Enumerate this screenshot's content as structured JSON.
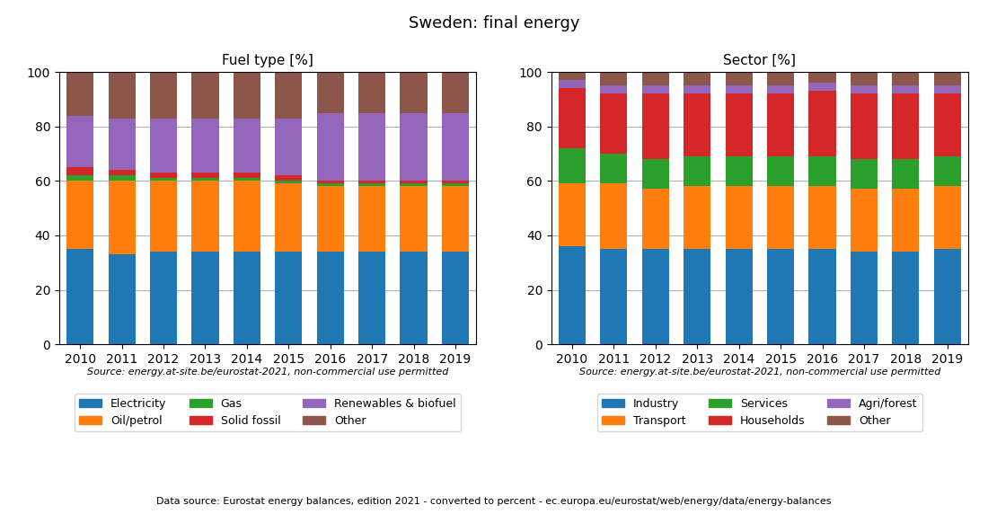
{
  "title": "Sweden: final energy",
  "annotations": [
    "Data source: Eurostat energy balances, edition 2021 - converted to percent - ec.europa.eu/eurostat/web/energy/data/energy-balances"
  ],
  "chart_data": [
    {
      "type": "bar",
      "stacked": true,
      "title": "Fuel type [%]",
      "categories": [
        "2010",
        "2011",
        "2012",
        "2013",
        "2014",
        "2015",
        "2016",
        "2017",
        "2018",
        "2019"
      ],
      "series": [
        {
          "name": "Electricity",
          "values": [
            35,
            33,
            34,
            34,
            34,
            34,
            34,
            34,
            34,
            34
          ]
        },
        {
          "name": "Oil/petrol",
          "values": [
            25,
            27,
            26,
            26,
            26,
            25,
            24,
            24,
            24,
            24
          ]
        },
        {
          "name": "Gas",
          "values": [
            2,
            2,
            1,
            1,
            1,
            1,
            1,
            1,
            1,
            1
          ]
        },
        {
          "name": "Solid fossil",
          "values": [
            3,
            2,
            2,
            2,
            2,
            2,
            1,
            1,
            1,
            1
          ]
        },
        {
          "name": "Renewables & biofuel",
          "values": [
            19,
            19,
            20,
            20,
            20,
            21,
            25,
            25,
            25,
            25
          ]
        },
        {
          "name": "Other",
          "values": [
            16,
            17,
            17,
            17,
            17,
            17,
            15,
            15,
            15,
            15
          ]
        }
      ],
      "ylim": [
        0,
        100
      ],
      "yticks": [
        0,
        20,
        40,
        60,
        80,
        100
      ],
      "grid": true,
      "legend": "upper center",
      "annotations": [
        "Source: energy.at-site.be/eurostat-2021, non-commercial use permitted"
      ]
    },
    {
      "type": "bar",
      "stacked": true,
      "title": "Sector [%]",
      "categories": [
        "2010",
        "2011",
        "2012",
        "2013",
        "2014",
        "2015",
        "2016",
        "2017",
        "2018",
        "2019"
      ],
      "series": [
        {
          "name": "Industry",
          "values": [
            36,
            35,
            35,
            35,
            35,
            35,
            35,
            34,
            34,
            35
          ]
        },
        {
          "name": "Transport",
          "values": [
            23,
            24,
            22,
            23,
            23,
            23,
            23,
            23,
            23,
            23
          ]
        },
        {
          "name": "Services",
          "values": [
            13,
            11,
            11,
            11,
            11,
            11,
            11,
            11,
            11,
            11
          ]
        },
        {
          "name": "Households",
          "values": [
            22,
            22,
            24,
            23,
            23,
            23,
            24,
            24,
            24,
            23
          ]
        },
        {
          "name": "Agri/forest",
          "values": [
            3,
            3,
            3,
            3,
            3,
            3,
            3,
            3,
            3,
            3
          ]
        },
        {
          "name": "Other",
          "values": [
            3,
            5,
            5,
            5,
            5,
            5,
            4,
            5,
            5,
            5
          ]
        }
      ],
      "ylim": [
        0,
        100
      ],
      "yticks": [
        0,
        20,
        40,
        60,
        80,
        100
      ],
      "grid": true,
      "legend": "upper center",
      "annotations": [
        "Source: energy.at-site.be/eurostat-2021, non-commercial use permitted"
      ]
    }
  ]
}
